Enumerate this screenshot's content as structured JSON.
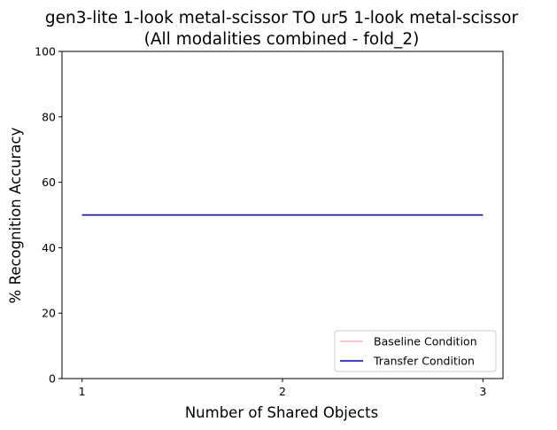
{
  "chart_data": {
    "type": "line",
    "title_line1": "gen3-lite 1-look metal-scissor TO ur5 1-look metal-scissor",
    "title_line2": "(All modalities combined - fold_2)",
    "xlabel": "Number of Shared Objects",
    "ylabel": "% Recognition Accuracy",
    "x": [
      1,
      2,
      3
    ],
    "x_ticks": [
      "1",
      "2",
      "3"
    ],
    "y_ticks": [
      "0",
      "20",
      "40",
      "60",
      "80",
      "100"
    ],
    "xlim": [
      0.9,
      3.1
    ],
    "ylim": [
      0,
      100
    ],
    "grid": false,
    "legend_position": "lower-right",
    "series": [
      {
        "name": "Baseline Condition",
        "values": [
          50,
          50,
          50
        ],
        "color": "#ffb6c1"
      },
      {
        "name": "Transfer Condition",
        "values": [
          50,
          50,
          50
        ],
        "color": "#0000aa"
      }
    ]
  }
}
